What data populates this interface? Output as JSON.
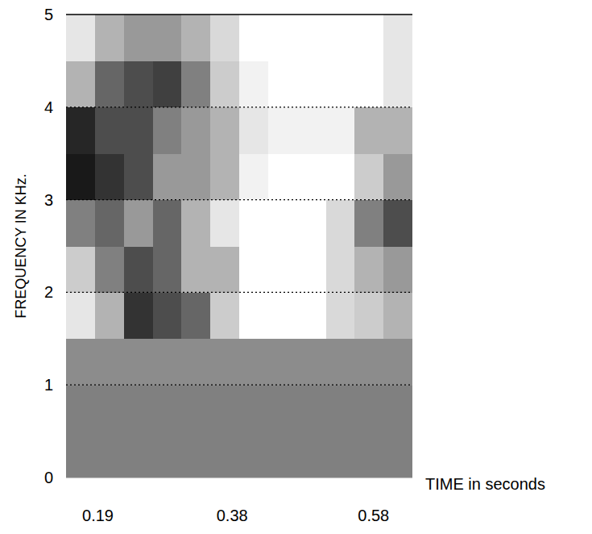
{
  "chart_data": {
    "type": "heatmap",
    "x_label": "TIME in seconds",
    "y_label": "FREQUENCY IN KHz.",
    "xlim": [
      0.145,
      0.635
    ],
    "xticks": [
      0.19,
      0.38,
      0.58
    ],
    "ylim": [
      0,
      5
    ],
    "yticks": [
      0,
      1,
      2,
      3,
      4,
      5
    ],
    "grid": true,
    "x_bins": [
      0.145,
      0.186,
      0.227,
      0.268,
      0.308,
      0.349,
      0.39,
      0.431,
      0.472,
      0.513,
      0.553,
      0.594,
      0.635
    ],
    "y_bins": [
      0,
      0.5,
      1,
      1.5,
      2,
      2.5,
      3,
      3.5,
      4,
      4.5,
      5
    ],
    "cells": [
      [
        0.5,
        0.5,
        0.5,
        0.5,
        0.5,
        0.5,
        0.5,
        0.5,
        0.5,
        0.5,
        0.5,
        0.5
      ],
      [
        0.5,
        0.5,
        0.5,
        0.5,
        0.5,
        0.5,
        0.5,
        0.5,
        0.5,
        0.5,
        0.5,
        0.5
      ],
      [
        0.45,
        0.45,
        0.45,
        0.45,
        0.45,
        0.45,
        0.45,
        0.45,
        0.45,
        0.45,
        0.45,
        0.45
      ],
      [
        0.1,
        0.3,
        0.8,
        0.7,
        0.6,
        0.2,
        0,
        0,
        0,
        0.15,
        0.2,
        0.3
      ],
      [
        0.2,
        0.5,
        0.7,
        0.6,
        0.3,
        0.3,
        0,
        0,
        0,
        0.15,
        0.3,
        0.4
      ],
      [
        0.5,
        0.6,
        0.4,
        0.6,
        0.3,
        0.1,
        0,
        0,
        0,
        0.15,
        0.5,
        0.7
      ],
      [
        0.9,
        0.8,
        0.7,
        0.4,
        0.4,
        0.3,
        0.05,
        0,
        0,
        0,
        0.2,
        0.4
      ],
      [
        0.85,
        0.7,
        0.7,
        0.5,
        0.4,
        0.3,
        0.1,
        0.05,
        0.05,
        0.05,
        0.3,
        0.3
      ],
      [
        0.3,
        0.6,
        0.7,
        0.75,
        0.5,
        0.2,
        0.05,
        0,
        0,
        0,
        0,
        0.1
      ],
      [
        0.1,
        0.3,
        0.4,
        0.4,
        0.3,
        0.15,
        0,
        0,
        0,
        0,
        0,
        0.1
      ]
    ]
  }
}
